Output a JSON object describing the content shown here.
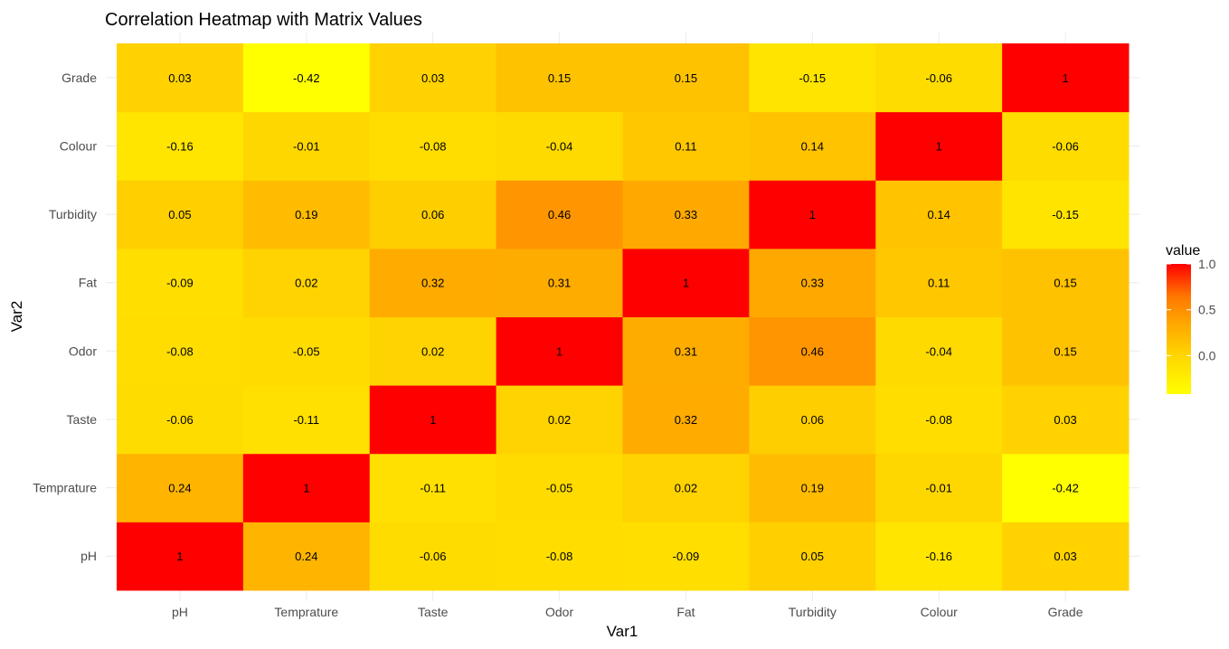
{
  "chart_data": {
    "type": "heatmap",
    "title": "Correlation Heatmap with Matrix Values",
    "xlabel": "Var1",
    "ylabel": "Var2",
    "x_categories": [
      "pH",
      "Temprature",
      "Taste",
      "Odor",
      "Fat",
      "Turbidity",
      "Colour",
      "Grade"
    ],
    "y_categories": [
      "pH",
      "Temprature",
      "Taste",
      "Odor",
      "Fat",
      "Turbidity",
      "Colour",
      "Grade"
    ],
    "matrix": [
      [
        1,
        0.24,
        -0.06,
        -0.08,
        -0.09,
        0.05,
        -0.16,
        0.03
      ],
      [
        0.24,
        1,
        -0.11,
        -0.05,
        0.02,
        0.19,
        -0.01,
        -0.42
      ],
      [
        -0.06,
        -0.11,
        1,
        0.02,
        0.32,
        0.06,
        -0.08,
        0.03
      ],
      [
        -0.08,
        -0.05,
        0.02,
        1,
        0.31,
        0.46,
        -0.04,
        0.15
      ],
      [
        -0.09,
        0.02,
        0.32,
        0.31,
        1,
        0.33,
        0.11,
        0.15
      ],
      [
        0.05,
        0.19,
        0.06,
        0.46,
        0.33,
        1,
        0.14,
        -0.15
      ],
      [
        -0.16,
        -0.01,
        -0.08,
        -0.04,
        0.11,
        0.14,
        1,
        -0.06
      ],
      [
        0.03,
        -0.42,
        0.03,
        0.15,
        0.15,
        -0.15,
        -0.06,
        1
      ]
    ],
    "legend": {
      "title": "value",
      "ticks": [
        "1.0",
        "0.5",
        "0.0"
      ],
      "tick_values": [
        1.0,
        0.5,
        0.0
      ],
      "range": [
        -0.42,
        1.0
      ],
      "placement": "right"
    },
    "color_low": "#FFFF00",
    "color_high": "#FF0000",
    "grid": true
  }
}
